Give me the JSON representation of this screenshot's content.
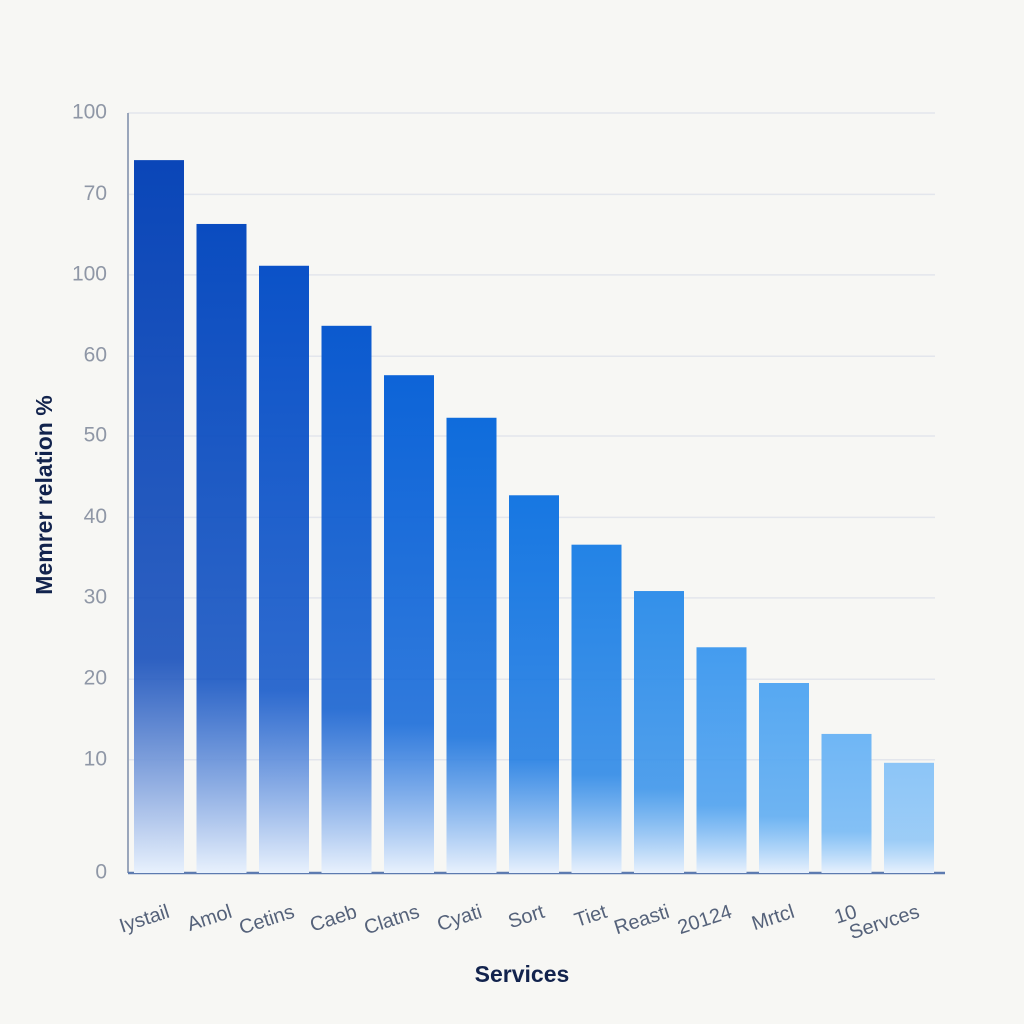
{
  "chart_data": {
    "type": "bar",
    "x_label": "Services",
    "y_label": "Memrer relation %",
    "categories": [
      "Iystail",
      "Amol",
      "Cetins",
      "Caeb",
      "Clatns",
      "Cyati",
      "Sort",
      "Tiet",
      "Reasti",
      "20124",
      "Mrtcl",
      "10",
      "Servces"
    ],
    "values": [
      93.8,
      85.4,
      79.9,
      72.0,
      65.5,
      59.9,
      49.7,
      43.2,
      37.1,
      29.7,
      25.0,
      18.3,
      14.5
    ],
    "colors": [
      "#0a46b8",
      "#0a4cc0",
      "#0b52c8",
      "#0b5acf",
      "#0d64d8",
      "#0f6cdc",
      "#1777e2",
      "#2383e6",
      "#3390ea",
      "#449cef",
      "#56a8f2",
      "#6fb6f5",
      "#8cc5f7"
    ],
    "ylim": [
      0,
      100
    ],
    "yticks": [
      0,
      {
        "value": 14.9,
        "label": "10"
      },
      {
        "value": 25.5,
        "label": "20"
      },
      {
        "value": 36.2,
        "label": "30"
      },
      {
        "value": 46.8,
        "label": "40"
      },
      {
        "value": 57.5,
        "label": "50"
      },
      {
        "value": 68.0,
        "label": "60"
      },
      {
        "value": 78.7,
        "label": "100"
      },
      {
        "value": 89.3,
        "label": "70"
      },
      100
    ],
    "grid": true
  }
}
